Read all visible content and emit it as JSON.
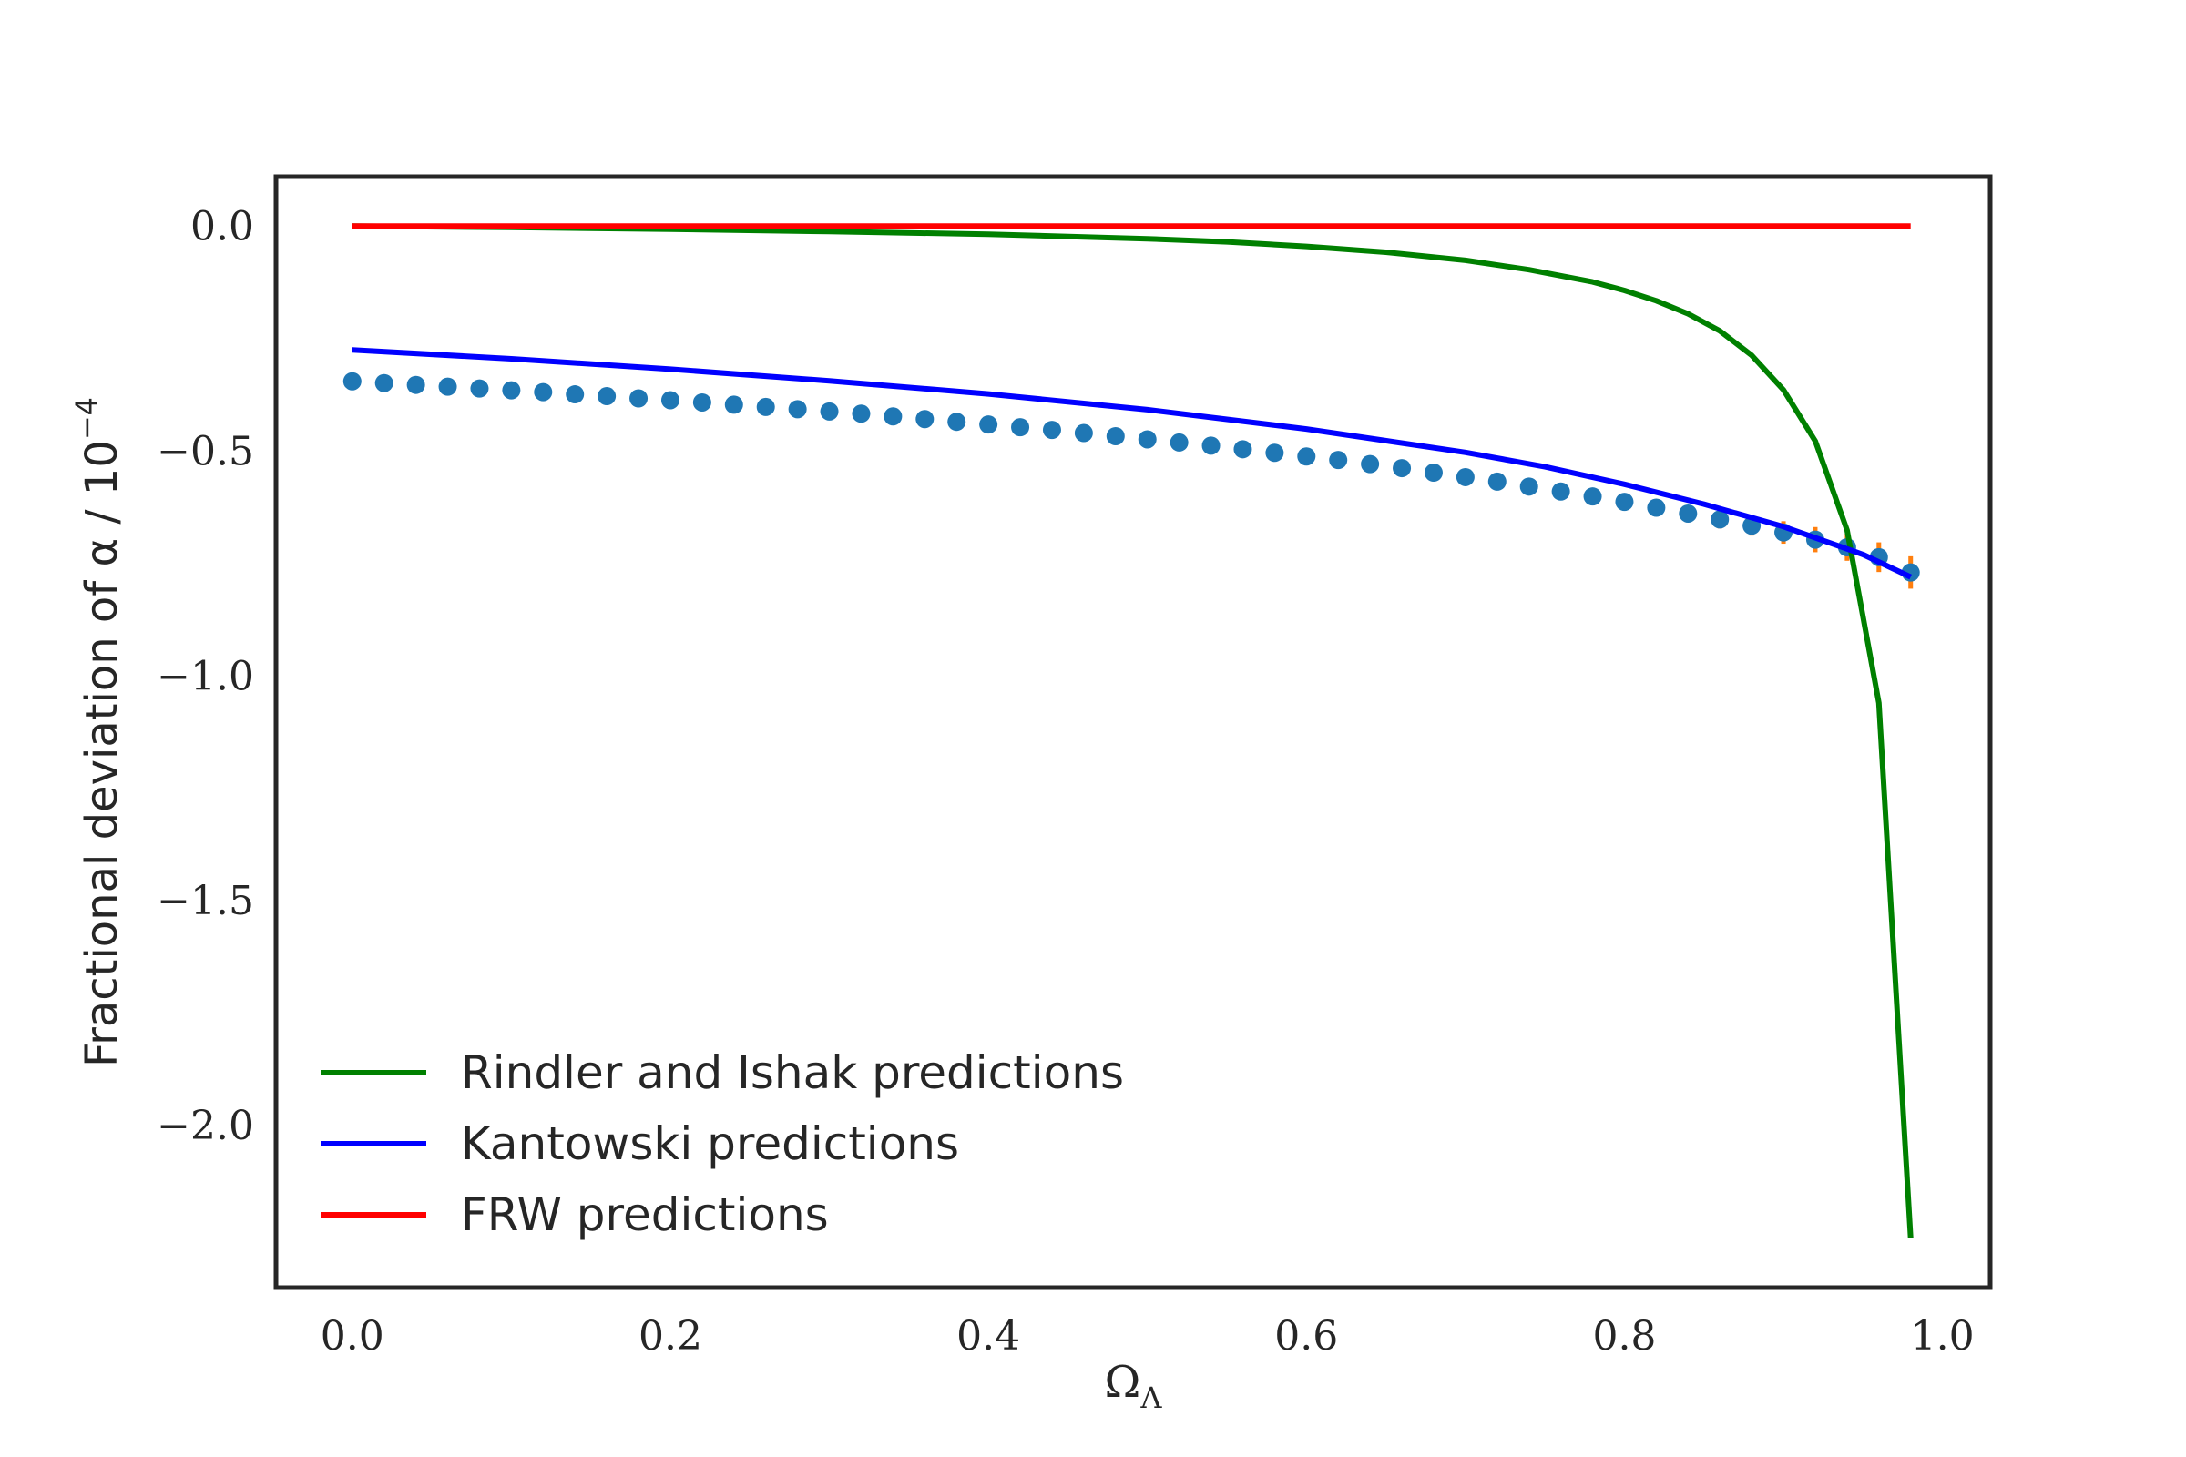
{
  "chart_data": {
    "type": "line",
    "title": "",
    "xlabel": "Ω",
    "xlabel_sub": "Λ",
    "ylabel": "Fractional deviation of α / 10",
    "ylabel_sup": "−4",
    "xlim": [
      -0.048,
      1.03
    ],
    "ylim": [
      -2.36,
      0.11
    ],
    "x_ticks": [
      0.0,
      0.2,
      0.4,
      0.6,
      0.8,
      1.0
    ],
    "x_tick_labels": [
      "0.0",
      "0.2",
      "0.4",
      "0.6",
      "0.8",
      "1.0"
    ],
    "y_ticks": [
      0.0,
      -0.5,
      -1.0,
      -1.5,
      -2.0
    ],
    "y_tick_labels": [
      "0.0",
      "−0.5",
      "−1.0",
      "−1.5",
      "−2.0"
    ],
    "grid": false,
    "legend_position": "lower-left",
    "series": [
      {
        "name": "Rindler and Ishak predictions",
        "color": "#008000",
        "kind": "line",
        "x": [
          0.0,
          0.1,
          0.2,
          0.3,
          0.4,
          0.5,
          0.55,
          0.6,
          0.65,
          0.7,
          0.74,
          0.78,
          0.8,
          0.82,
          0.84,
          0.86,
          0.88,
          0.9,
          0.92,
          0.94,
          0.96,
          0.98
        ],
        "y": [
          0.0,
          -0.003,
          -0.007,
          -0.012,
          -0.018,
          -0.028,
          -0.035,
          -0.045,
          -0.058,
          -0.076,
          -0.097,
          -0.124,
          -0.143,
          -0.166,
          -0.195,
          -0.233,
          -0.287,
          -0.364,
          -0.478,
          -0.676,
          -1.06,
          -2.25
        ]
      },
      {
        "name": "Kantowski predictions",
        "color": "#0000ff",
        "kind": "line",
        "x": [
          0.0,
          0.1,
          0.2,
          0.3,
          0.4,
          0.5,
          0.6,
          0.7,
          0.75,
          0.8,
          0.85,
          0.9,
          0.95,
          0.98
        ],
        "y": [
          -0.275,
          -0.295,
          -0.318,
          -0.344,
          -0.373,
          -0.408,
          -0.451,
          -0.503,
          -0.535,
          -0.574,
          -0.618,
          -0.668,
          -0.73,
          -0.78
        ]
      },
      {
        "name": "",
        "color": "#1f77b4",
        "kind": "scatter",
        "error_color": "#ff7f0e",
        "x": [
          0.0,
          0.02,
          0.04,
          0.06,
          0.08,
          0.1,
          0.12,
          0.14,
          0.16,
          0.18,
          0.2,
          0.22,
          0.24,
          0.26,
          0.28,
          0.3,
          0.32,
          0.34,
          0.36,
          0.38,
          0.4,
          0.42,
          0.44,
          0.46,
          0.48,
          0.5,
          0.52,
          0.54,
          0.56,
          0.58,
          0.6,
          0.62,
          0.64,
          0.66,
          0.68,
          0.7,
          0.72,
          0.74,
          0.76,
          0.78,
          0.8,
          0.82,
          0.84,
          0.86,
          0.88,
          0.9,
          0.92,
          0.94,
          0.96,
          0.98
        ],
        "y": [
          -0.345,
          -0.349,
          -0.353,
          -0.357,
          -0.361,
          -0.365,
          -0.369,
          -0.374,
          -0.378,
          -0.383,
          -0.387,
          -0.392,
          -0.397,
          -0.402,
          -0.407,
          -0.412,
          -0.417,
          -0.423,
          -0.429,
          -0.435,
          -0.441,
          -0.447,
          -0.453,
          -0.46,
          -0.467,
          -0.474,
          -0.481,
          -0.488,
          -0.496,
          -0.504,
          -0.512,
          -0.52,
          -0.529,
          -0.538,
          -0.548,
          -0.558,
          -0.568,
          -0.579,
          -0.59,
          -0.601,
          -0.613,
          -0.626,
          -0.639,
          -0.652,
          -0.666,
          -0.681,
          -0.697,
          -0.714,
          -0.736,
          -0.77
        ],
        "yerr": [
          0,
          0,
          0,
          0,
          0,
          0,
          0,
          0,
          0,
          0,
          0,
          0,
          0,
          0,
          0,
          0,
          0,
          0,
          0,
          0,
          0,
          0,
          0,
          0,
          0,
          0,
          0,
          0,
          0,
          0,
          0,
          0,
          0,
          0,
          0,
          0,
          0,
          0,
          0,
          0.01,
          0.012,
          0.015,
          0.018,
          0.02,
          0.022,
          0.025,
          0.028,
          0.03,
          0.033,
          0.036
        ]
      },
      {
        "name": "FRW predictions",
        "color": "#ff0000",
        "kind": "line",
        "x": [
          0.0,
          0.98
        ],
        "y": [
          0.0,
          0.0
        ]
      }
    ]
  }
}
